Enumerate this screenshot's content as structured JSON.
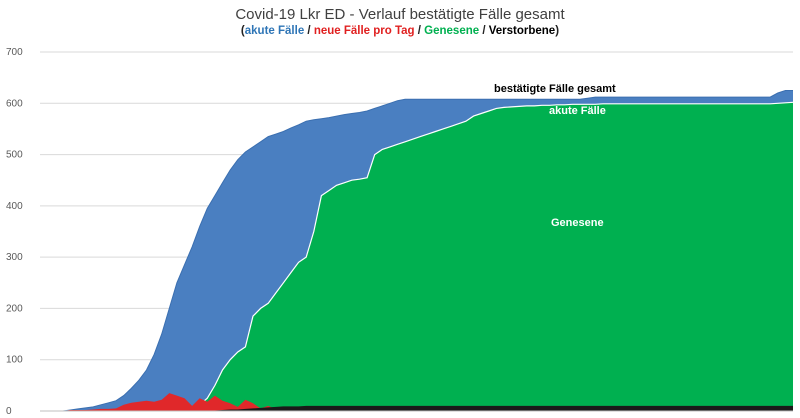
{
  "chart_data": {
    "type": "area",
    "title": "Covid-19 Lkr ED - Verlauf bestätigte Fälle gesamt",
    "subtitle_parts": [
      {
        "text": "akute Fälle",
        "color": "#2e75b6"
      },
      {
        "text": "neue Fälle pro Tag",
        "color": "#e02020"
      },
      {
        "text": "Genesene",
        "color": "#00b050"
      },
      {
        "text": "Verstorbene",
        "color": "#000000"
      }
    ],
    "subtitle_open": "(",
    "subtitle_close": ")",
    "subtitle_sep": " / ",
    "ylim": [
      0,
      700
    ],
    "yticks": [
      "0",
      "100",
      "200",
      "300",
      "400",
      "500",
      "600",
      "700"
    ],
    "grid": true,
    "colors": {
      "confirmed": "#4a7fc1",
      "recovered": "#00b050",
      "new": "#e0282a",
      "deaths": "#1a1a1a",
      "white_line": "#ffffff"
    },
    "annotations": {
      "confirmed": "bestätigte Fälle gesamt",
      "active": "akute Fälle",
      "recovered": "Genesene"
    },
    "day_index": [
      0,
      3,
      6,
      8,
      10,
      12,
      14,
      16,
      18,
      20,
      22,
      24,
      26,
      28,
      30,
      32,
      34,
      36,
      38,
      40,
      42,
      44,
      46,
      48,
      50,
      52,
      54,
      56,
      58,
      60,
      62,
      64,
      66,
      68,
      70,
      72,
      74,
      76,
      78,
      80,
      82,
      84,
      86,
      88,
      90,
      92,
      94,
      96,
      98,
      100,
      102,
      104,
      106,
      108,
      110,
      112,
      114,
      116,
      118,
      120,
      122,
      124,
      126,
      128,
      130,
      132,
      134,
      136,
      138,
      140,
      142,
      144,
      146,
      148,
      150,
      152,
      154,
      156,
      158,
      160,
      162,
      164,
      166,
      168,
      170,
      172,
      174,
      176,
      178,
      180,
      182,
      184,
      186,
      188,
      190,
      192,
      194,
      196,
      198
    ],
    "series": [
      {
        "name": "bestätigte Fälle gesamt",
        "values": [
          0,
          0,
          0,
          2,
          4,
          6,
          8,
          12,
          16,
          20,
          30,
          44,
          60,
          80,
          110,
          150,
          200,
          250,
          285,
          320,
          360,
          395,
          420,
          445,
          470,
          490,
          505,
          515,
          525,
          535,
          540,
          545,
          552,
          558,
          565,
          568,
          570,
          572,
          575,
          578,
          580,
          582,
          585,
          590,
          595,
          600,
          605,
          608,
          608,
          608,
          608,
          608,
          608,
          608,
          608,
          608,
          608,
          608,
          608,
          608,
          608,
          608,
          608,
          608,
          608,
          608,
          608,
          608,
          608,
          608,
          608,
          610,
          612,
          612,
          612,
          612,
          612,
          612,
          612,
          612,
          612,
          612,
          612,
          612,
          612,
          612,
          612,
          612,
          612,
          612,
          612,
          612,
          612,
          612,
          612,
          612,
          620,
          625,
          625
        ]
      },
      {
        "name": "Genesene",
        "values": [
          0,
          0,
          0,
          0,
          0,
          0,
          0,
          0,
          0,
          0,
          0,
          0,
          0,
          0,
          0,
          0,
          0,
          0,
          2,
          6,
          12,
          25,
          50,
          80,
          100,
          115,
          125,
          185,
          200,
          210,
          230,
          250,
          270,
          290,
          300,
          350,
          420,
          430,
          440,
          445,
          450,
          452,
          455,
          500,
          510,
          515,
          520,
          525,
          530,
          535,
          540,
          545,
          550,
          555,
          560,
          565,
          575,
          580,
          585,
          590,
          592,
          593,
          594,
          595,
          595,
          596,
          596,
          597,
          597,
          598,
          598,
          598,
          598,
          599,
          599,
          599,
          599,
          599,
          599,
          599,
          599,
          599,
          599,
          599,
          599,
          599,
          599,
          599,
          599,
          599,
          599,
          599,
          599,
          599,
          599,
          599,
          600,
          601,
          602
        ]
      },
      {
        "name": "neue Fälle pro Tag",
        "values": [
          0,
          0,
          0,
          2,
          2,
          2,
          3,
          4,
          4,
          5,
          12,
          16,
          18,
          20,
          18,
          22,
          35,
          30,
          25,
          10,
          25,
          18,
          30,
          20,
          15,
          8,
          22,
          15,
          5,
          10,
          4,
          3,
          6,
          5,
          5,
          2,
          3,
          4,
          4,
          3,
          3,
          4,
          5,
          2,
          3,
          2,
          1,
          2,
          1,
          1,
          1,
          1,
          0,
          0,
          0,
          1,
          1,
          0,
          0,
          0,
          1,
          1,
          0,
          0,
          0,
          0,
          0,
          0,
          0,
          0,
          0,
          1,
          1,
          0,
          0,
          0,
          0,
          0,
          0,
          0,
          0,
          0,
          0,
          0,
          0,
          0,
          0,
          0,
          0,
          0,
          0,
          0,
          0,
          0,
          0,
          0,
          8,
          5,
          0
        ]
      },
      {
        "name": "Verstorbene",
        "values": [
          0,
          0,
          0,
          0,
          0,
          0,
          0,
          0,
          0,
          0,
          0,
          0,
          0,
          0,
          0,
          0,
          0,
          0,
          0,
          0,
          0,
          0,
          1,
          2,
          3,
          3,
          4,
          5,
          6,
          7,
          8,
          9,
          9,
          9,
          10,
          10,
          10,
          10,
          10,
          10,
          10,
          10,
          10,
          10,
          10,
          10,
          10,
          10,
          10,
          10,
          10,
          10,
          10,
          10,
          10,
          10,
          10,
          10,
          10,
          10,
          10,
          10,
          10,
          10,
          10,
          10,
          10,
          10,
          10,
          10,
          10,
          10,
          10,
          10,
          10,
          10,
          10,
          10,
          10,
          10,
          10,
          10,
          10,
          10,
          10,
          10,
          10,
          10,
          10,
          10,
          10,
          10,
          10,
          10,
          10,
          10,
          10,
          10,
          10
        ]
      }
    ]
  }
}
